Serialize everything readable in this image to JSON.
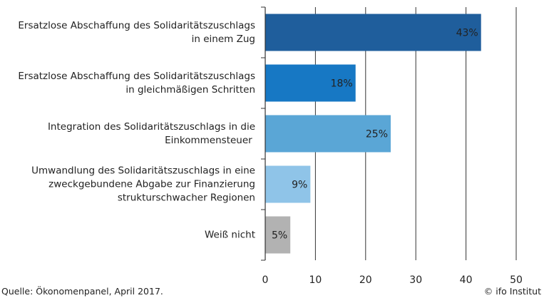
{
  "chart_data": {
    "type": "bar",
    "orientation": "horizontal",
    "categories": [
      "Ersatzlose Abschaffung des Solidaritätszuschlags\nin einem Zug",
      "Ersatzlose Abschaffung des Solidaritätszuschlags\nin gleichmäßigen Schritten",
      "Integration des Solidaritätszuschlags in die\nEinkommensteuer ",
      "Umwandlung des Solidaritätszuschlags in eine\nzweckgebundene Abgabe zur Finanzierung\nstrukturschwacher Regionen",
      "Weiß nicht"
    ],
    "values": [
      43,
      18,
      25,
      9,
      5
    ],
    "value_labels": [
      "43%",
      "18%",
      "25%",
      "9%",
      "5%"
    ],
    "colors": [
      "#1f5e9c",
      "#1778c4",
      "#5aa6d6",
      "#8fc4e8",
      "#b2b2b2"
    ],
    "xlim": [
      0,
      50
    ],
    "xticks": [
      0,
      10,
      20,
      30,
      40,
      50
    ],
    "grid": true,
    "source": "Quelle: Ökonomenpanel, April 2017.",
    "credit": "© ifo Institut"
  }
}
